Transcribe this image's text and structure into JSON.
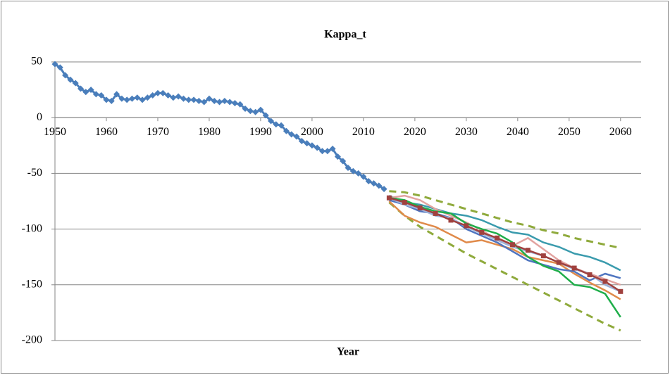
{
  "chart_data": {
    "type": "line",
    "title": "Kappa_t",
    "x_label": "Year",
    "xlim": [
      1950,
      2064
    ],
    "xticks": [
      1950,
      1960,
      1970,
      1980,
      1990,
      2000,
      2010,
      2020,
      2030,
      2040,
      2050,
      2060
    ],
    "ylim": [
      -200,
      50
    ],
    "yticks": [
      -200,
      -150,
      -100,
      -50,
      0,
      50
    ],
    "grid": true,
    "series": [
      {
        "color": "#4a7ebb",
        "marker": "diamond",
        "width": 3,
        "x": [
          1950,
          1951,
          1952,
          1953,
          1954,
          1955,
          1956,
          1957,
          1958,
          1959,
          1960,
          1961,
          1962,
          1963,
          1964,
          1965,
          1966,
          1967,
          1968,
          1969,
          1970,
          1971,
          1972,
          1973,
          1974,
          1975,
          1976,
          1977,
          1978,
          1979,
          1980,
          1981,
          1982,
          1983,
          1984,
          1985,
          1986,
          1987,
          1988,
          1989,
          1990,
          1991,
          1992,
          1993,
          1994,
          1995,
          1996,
          1997,
          1998,
          1999,
          2000,
          2001,
          2002,
          2003,
          2004,
          2005,
          2006,
          2007,
          2008,
          2009,
          2010,
          2011,
          2012,
          2013,
          2014
        ],
        "values": [
          48,
          45,
          38,
          34,
          31,
          26,
          23,
          25,
          21,
          20,
          16,
          15,
          21,
          17,
          16,
          17,
          18,
          16,
          18,
          20,
          22,
          22,
          20,
          18,
          19,
          17,
          16,
          16,
          15,
          14,
          17,
          15,
          14,
          15,
          14,
          13,
          12,
          8,
          6,
          5,
          7,
          2,
          -3,
          -6,
          -7,
          -12,
          -15,
          -17,
          -21,
          -23,
          -25,
          -27,
          -30,
          -30,
          -28,
          -35,
          -39,
          -45,
          -48,
          -50,
          -53,
          -57,
          -59,
          -61,
          -64
        ]
      },
      {
        "color": "#8faa3c",
        "dash": true,
        "width": 3,
        "x": [
          2015,
          2018,
          2021,
          2024,
          2027,
          2030,
          2033,
          2036,
          2039,
          2042,
          2045,
          2048,
          2051,
          2054,
          2057,
          2060
        ],
        "values": [
          -66,
          -67,
          -70,
          -74,
          -78,
          -82,
          -86,
          -90,
          -94,
          -97,
          -101,
          -104,
          -108,
          -111,
          -114,
          -117
        ]
      },
      {
        "color": "#8faa3c",
        "dash": true,
        "width": 3,
        "x": [
          2015,
          2018,
          2021,
          2024,
          2027,
          2030,
          2033,
          2036,
          2039,
          2042,
          2045,
          2048,
          2051,
          2054,
          2057,
          2060
        ],
        "values": [
          -76,
          -88,
          -98,
          -106,
          -114,
          -122,
          -129,
          -136,
          -143,
          -150,
          -157,
          -164,
          -171,
          -178,
          -185,
          -191
        ]
      },
      {
        "color": "#3a9bad",
        "width": 2.5,
        "x": [
          2015,
          2018,
          2021,
          2024,
          2027,
          2030,
          2033,
          2036,
          2039,
          2042,
          2045,
          2048,
          2051,
          2054,
          2057,
          2060
        ],
        "values": [
          -70,
          -76,
          -78,
          -82,
          -86,
          -88,
          -92,
          -98,
          -103,
          -105,
          -112,
          -116,
          -122,
          -125,
          -130,
          -137
        ]
      },
      {
        "color": "#e08a4a",
        "width": 2.5,
        "x": [
          2015,
          2018,
          2021,
          2024,
          2027,
          2030,
          2033,
          2036,
          2039,
          2042,
          2045,
          2048,
          2051,
          2054,
          2057,
          2060
        ],
        "values": [
          -75,
          -88,
          -94,
          -98,
          -105,
          -112,
          -110,
          -114,
          -118,
          -125,
          -128,
          -131,
          -140,
          -148,
          -155,
          -163
        ]
      },
      {
        "color": "#4f75c0",
        "width": 2.5,
        "x": [
          2015,
          2018,
          2021,
          2024,
          2027,
          2030,
          2033,
          2036,
          2039,
          2042,
          2045,
          2048,
          2051,
          2054,
          2057,
          2060
        ],
        "values": [
          -74,
          -78,
          -84,
          -86,
          -90,
          -100,
          -106,
          -112,
          -120,
          -128,
          -132,
          -136,
          -138,
          -146,
          -140,
          -144
        ]
      },
      {
        "color": "#e2a3a0",
        "width": 2.5,
        "x": [
          2015,
          2018,
          2021,
          2024,
          2027,
          2030,
          2033,
          2036,
          2039,
          2042,
          2045,
          2048,
          2051,
          2054,
          2057,
          2060
        ],
        "values": [
          -72,
          -70,
          -74,
          -82,
          -88,
          -94,
          -101,
          -110,
          -115,
          -108,
          -118,
          -128,
          -135,
          -140,
          -145,
          -150
        ]
      },
      {
        "color": "#9fb3d8",
        "width": 2.5,
        "x": [
          2015,
          2018,
          2021,
          2024,
          2027,
          2030,
          2033,
          2036,
          2039,
          2042,
          2045,
          2048,
          2051,
          2054,
          2057,
          2060
        ],
        "values": [
          -72,
          -78,
          -82,
          -88,
          -90,
          -98,
          -104,
          -110,
          -116,
          -120,
          -124,
          -130,
          -136,
          -140,
          -150,
          -156
        ]
      },
      {
        "color": "#1fae4a",
        "width": 2.5,
        "x": [
          2015,
          2018,
          2021,
          2024,
          2027,
          2030,
          2033,
          2036,
          2039,
          2042,
          2045,
          2048,
          2051,
          2054,
          2057,
          2060
        ],
        "values": [
          -72,
          -74,
          -80,
          -84,
          -86,
          -95,
          -100,
          -104,
          -112,
          -125,
          -133,
          -138,
          -150,
          -152,
          -158,
          -179
        ]
      },
      {
        "color": "#a0413e",
        "marker": "square",
        "width": 2.5,
        "x": [
          2015,
          2018,
          2021,
          2024,
          2027,
          2030,
          2033,
          2036,
          2039,
          2042,
          2045,
          2048,
          2051,
          2054,
          2057,
          2060
        ],
        "values": [
          -72,
          -76,
          -81,
          -86,
          -92,
          -97,
          -103,
          -108,
          -114,
          -119,
          -124,
          -130,
          -135,
          -141,
          -147,
          -156
        ]
      }
    ]
  }
}
